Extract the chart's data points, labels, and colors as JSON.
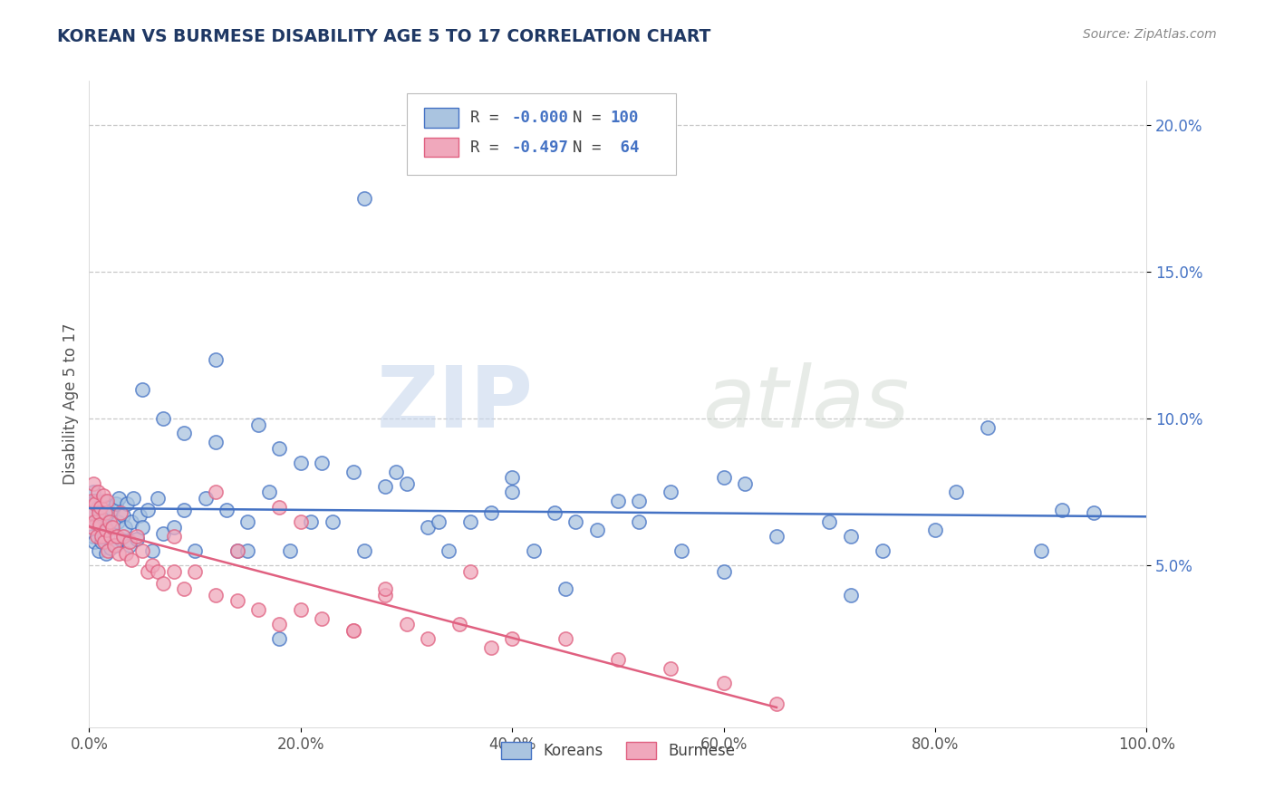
{
  "title": "KOREAN VS BURMESE DISABILITY AGE 5 TO 17 CORRELATION CHART",
  "source_text": "Source: ZipAtlas.com",
  "ylabel": "Disability Age 5 to 17",
  "xlim": [
    0.0,
    1.0
  ],
  "ylim": [
    -0.005,
    0.215
  ],
  "xtick_labels": [
    "0.0%",
    "20.0%",
    "40.0%",
    "60.0%",
    "80.0%",
    "100.0%"
  ],
  "xtick_vals": [
    0.0,
    0.2,
    0.4,
    0.6,
    0.8,
    1.0
  ],
  "ytick_labels": [
    "5.0%",
    "10.0%",
    "15.0%",
    "20.0%"
  ],
  "ytick_vals": [
    0.05,
    0.1,
    0.15,
    0.2
  ],
  "korean_color": "#aac4e0",
  "burmese_color": "#f0a8bc",
  "korean_edge_color": "#4472c4",
  "burmese_edge_color": "#e06080",
  "korean_line_color": "#4472c4",
  "burmese_line_color": "#e06080",
  "watermark_zip": "ZIP",
  "watermark_atlas": "atlas",
  "background_color": "#ffffff",
  "grid_color": "#c8c8c8",
  "title_color": "#1f3864",
  "source_color": "#888888",
  "blue": "#4472c4",
  "black": "#444444",
  "korean_scatter_x": [
    0.002,
    0.003,
    0.004,
    0.005,
    0.006,
    0.007,
    0.008,
    0.009,
    0.01,
    0.011,
    0.012,
    0.013,
    0.014,
    0.015,
    0.016,
    0.017,
    0.018,
    0.019,
    0.02,
    0.021,
    0.022,
    0.025,
    0.025,
    0.027,
    0.028,
    0.03,
    0.032,
    0.034,
    0.036,
    0.038,
    0.04,
    0.042,
    0.045,
    0.048,
    0.05,
    0.055,
    0.06,
    0.065,
    0.07,
    0.08,
    0.09,
    0.1,
    0.11,
    0.12,
    0.13,
    0.14,
    0.15,
    0.17,
    0.19,
    0.21,
    0.23,
    0.26,
    0.29,
    0.32,
    0.36,
    0.4,
    0.44,
    0.48,
    0.52,
    0.56,
    0.6,
    0.65,
    0.7,
    0.75,
    0.8,
    0.85,
    0.9,
    0.95,
    0.34,
    0.46,
    0.55,
    0.38,
    0.26,
    0.2,
    0.16,
    0.12,
    0.09,
    0.07,
    0.05,
    0.15,
    0.25,
    0.3,
    0.4,
    0.5,
    0.6,
    0.18,
    0.22,
    0.28,
    0.33,
    0.42,
    0.52,
    0.62,
    0.72,
    0.82,
    0.92,
    0.72,
    0.45,
    0.18
  ],
  "korean_scatter_y": [
    0.068,
    0.06,
    0.075,
    0.058,
    0.072,
    0.065,
    0.07,
    0.055,
    0.063,
    0.068,
    0.058,
    0.072,
    0.06,
    0.066,
    0.054,
    0.07,
    0.062,
    0.068,
    0.056,
    0.063,
    0.069,
    0.071,
    0.057,
    0.065,
    0.073,
    0.059,
    0.067,
    0.063,
    0.071,
    0.057,
    0.065,
    0.073,
    0.059,
    0.067,
    0.063,
    0.069,
    0.055,
    0.073,
    0.061,
    0.063,
    0.069,
    0.055,
    0.073,
    0.092,
    0.069,
    0.055,
    0.065,
    0.075,
    0.055,
    0.065,
    0.065,
    0.055,
    0.082,
    0.063,
    0.065,
    0.08,
    0.068,
    0.062,
    0.065,
    0.055,
    0.048,
    0.06,
    0.065,
    0.055,
    0.062,
    0.097,
    0.055,
    0.068,
    0.055,
    0.065,
    0.075,
    0.068,
    0.175,
    0.085,
    0.098,
    0.12,
    0.095,
    0.1,
    0.11,
    0.055,
    0.082,
    0.078,
    0.075,
    0.072,
    0.08,
    0.09,
    0.085,
    0.077,
    0.065,
    0.055,
    0.072,
    0.078,
    0.06,
    0.075,
    0.069,
    0.04,
    0.042,
    0.025
  ],
  "burmese_scatter_x": [
    0.001,
    0.002,
    0.003,
    0.004,
    0.005,
    0.006,
    0.007,
    0.008,
    0.009,
    0.01,
    0.011,
    0.012,
    0.013,
    0.014,
    0.015,
    0.016,
    0.017,
    0.018,
    0.019,
    0.02,
    0.022,
    0.024,
    0.026,
    0.028,
    0.03,
    0.032,
    0.035,
    0.038,
    0.04,
    0.045,
    0.05,
    0.055,
    0.06,
    0.065,
    0.07,
    0.08,
    0.09,
    0.1,
    0.12,
    0.14,
    0.16,
    0.18,
    0.2,
    0.22,
    0.25,
    0.28,
    0.3,
    0.32,
    0.35,
    0.38,
    0.4,
    0.45,
    0.5,
    0.55,
    0.6,
    0.65,
    0.14,
    0.2,
    0.28,
    0.36,
    0.25,
    0.18,
    0.12,
    0.08
  ],
  "burmese_scatter_y": [
    0.068,
    0.072,
    0.063,
    0.078,
    0.065,
    0.071,
    0.06,
    0.075,
    0.068,
    0.064,
    0.07,
    0.06,
    0.074,
    0.058,
    0.068,
    0.062,
    0.072,
    0.055,
    0.065,
    0.06,
    0.063,
    0.057,
    0.06,
    0.054,
    0.068,
    0.06,
    0.054,
    0.058,
    0.052,
    0.06,
    0.055,
    0.048,
    0.05,
    0.048,
    0.044,
    0.048,
    0.042,
    0.048,
    0.04,
    0.038,
    0.035,
    0.03,
    0.035,
    0.032,
    0.028,
    0.04,
    0.03,
    0.025,
    0.03,
    0.022,
    0.025,
    0.025,
    0.018,
    0.015,
    0.01,
    0.003,
    0.055,
    0.065,
    0.042,
    0.048,
    0.028,
    0.07,
    0.075,
    0.06
  ]
}
